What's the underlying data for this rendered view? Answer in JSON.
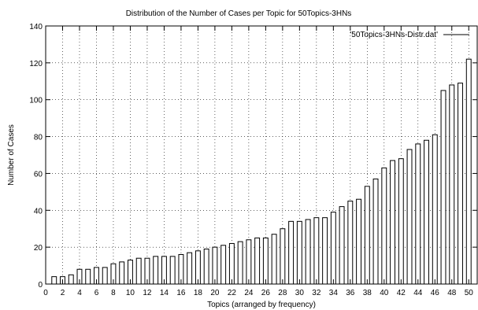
{
  "chart_data": {
    "type": "bar",
    "title": "Distribution of the Number of Cases per Topic for 50Topics-3HNs",
    "xlabel": "Topics (arranged by frequency)",
    "ylabel": "Number of Cases",
    "legend": {
      "label": "'50Topics-3HNs-Distr.dat'",
      "placement": "top-right"
    },
    "xlim": [
      0,
      51
    ],
    "ylim": [
      0,
      140
    ],
    "x_ticks": [
      0,
      2,
      4,
      6,
      8,
      10,
      12,
      14,
      16,
      18,
      20,
      22,
      24,
      26,
      28,
      30,
      32,
      34,
      36,
      38,
      40,
      42,
      44,
      46,
      48,
      50
    ],
    "y_ticks": [
      0,
      20,
      40,
      60,
      80,
      100,
      120,
      140
    ],
    "grid": true,
    "bar_fill": "#ffffff",
    "bar_stroke": "#000000",
    "x": [
      1,
      2,
      3,
      4,
      5,
      6,
      7,
      8,
      9,
      10,
      11,
      12,
      13,
      14,
      15,
      16,
      17,
      18,
      19,
      20,
      21,
      22,
      23,
      24,
      25,
      26,
      27,
      28,
      29,
      30,
      31,
      32,
      33,
      34,
      35,
      36,
      37,
      38,
      39,
      40,
      41,
      42,
      43,
      44,
      45,
      46,
      47,
      48,
      49,
      50
    ],
    "values": [
      4,
      4,
      5,
      8,
      8,
      9,
      9,
      11,
      12,
      13,
      14,
      14,
      15,
      15,
      15,
      16,
      17,
      18,
      19,
      20,
      21,
      22,
      23,
      24,
      25,
      25,
      27,
      30,
      34,
      34,
      35,
      36,
      36,
      39,
      42,
      45,
      46,
      53,
      57,
      63,
      67,
      68,
      73,
      76,
      78,
      81,
      105,
      108,
      109,
      122
    ]
  }
}
